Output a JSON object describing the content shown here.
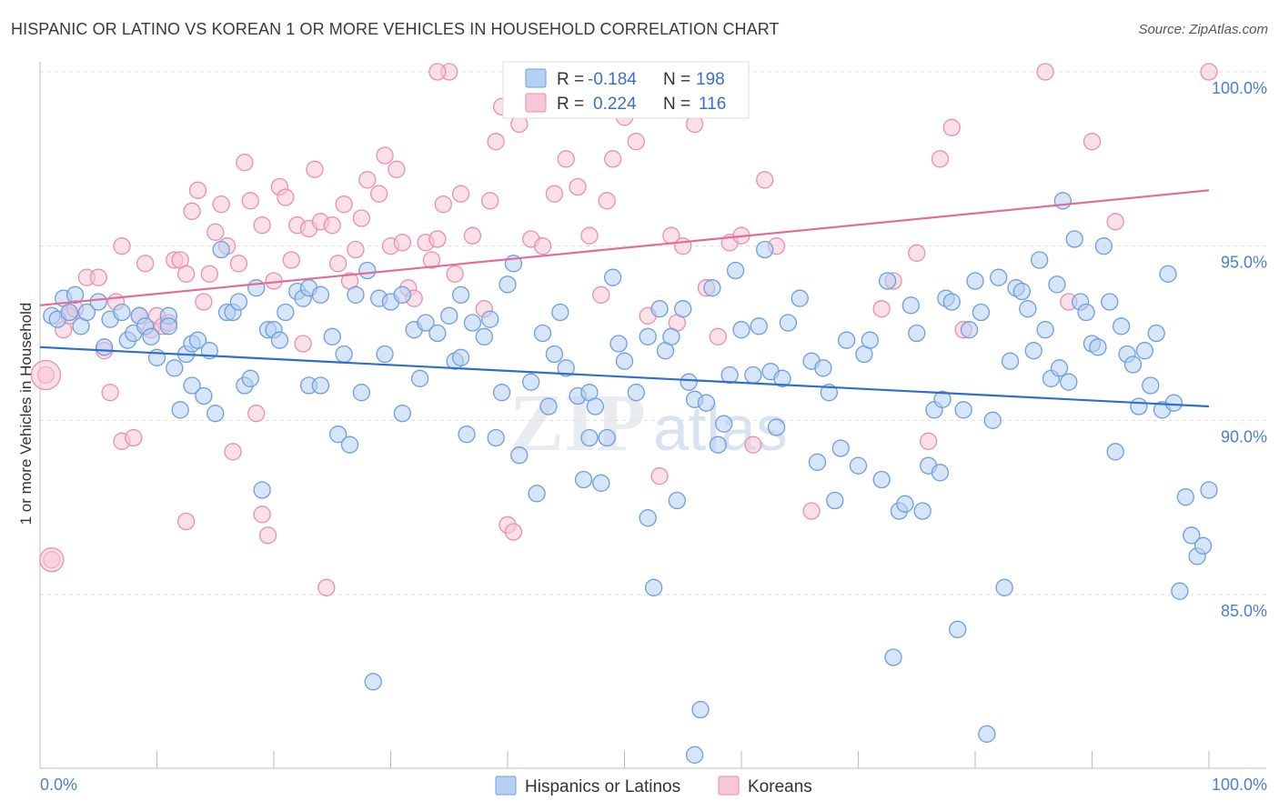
{
  "header": {
    "title": "HISPANIC OR LATINO VS KOREAN 1 OR MORE VEHICLES IN HOUSEHOLD CORRELATION CHART",
    "source": "Source: ZipAtlas.com"
  },
  "watermark": "ZIPatlas",
  "colors": {
    "blue_fill": "#b6d0f3",
    "blue_stroke": "#6d9ee0",
    "blue_line": "#2f6fcc",
    "pink_fill": "#f8c6d6",
    "pink_stroke": "#e98fae",
    "pink_line": "#e36c97",
    "axis_label": "#4a7fd0",
    "grid": "#dddddd"
  },
  "legend": {
    "rows": [
      {
        "r_label": "R =",
        "r_value": "-0.184",
        "n_label": "N =",
        "n_value": "198"
      },
      {
        "r_label": "R =",
        "r_value": "0.224",
        "n_label": "N =",
        "n_value": "116"
      }
    ]
  },
  "bottom_legend": [
    "Hispanics or Latinos",
    "Koreans"
  ],
  "chart_data": {
    "type": "scatter",
    "xlabel": "",
    "ylabel": "1 or more Vehicles in Household",
    "xlim": [
      0,
      100
    ],
    "ylim": [
      80.2,
      100.5
    ],
    "x_tick_labels": [
      "0.0%",
      "100.0%"
    ],
    "y_ticks": [
      85,
      90,
      95,
      100
    ],
    "y_tick_labels": [
      "85.0%",
      "90.0%",
      "95.0%",
      "100.0%"
    ],
    "grid": true,
    "series": [
      {
        "name": "Hispanics or Latinos",
        "color": "#b6d0f3",
        "trend": {
          "x": [
            0,
            100
          ],
          "y": [
            92.1,
            90.4
          ]
        },
        "points": [
          [
            1,
            93.0
          ],
          [
            1.5,
            92.9
          ],
          [
            2,
            93.5
          ],
          [
            2.5,
            93.1
          ],
          [
            3,
            93.6
          ],
          [
            3.5,
            92.7
          ],
          [
            4,
            93.1
          ],
          [
            5,
            93.4
          ],
          [
            5.5,
            92.1
          ],
          [
            6,
            92.9
          ],
          [
            7,
            93.1
          ],
          [
            7.5,
            92.3
          ],
          [
            8,
            92.5
          ],
          [
            8.5,
            93.0
          ],
          [
            9,
            92.7
          ],
          [
            9.5,
            92.4
          ],
          [
            10,
            91.8
          ],
          [
            11,
            93.0
          ],
          [
            11,
            92.7
          ],
          [
            11.5,
            91.5
          ],
          [
            12,
            90.3
          ],
          [
            12.5,
            91.9
          ],
          [
            13,
            92.2
          ],
          [
            13,
            91.0
          ],
          [
            13.5,
            92.3
          ],
          [
            14,
            90.7
          ],
          [
            14.5,
            92.0
          ],
          [
            15,
            90.2
          ],
          [
            16,
            93.1
          ],
          [
            16.5,
            93.1
          ],
          [
            17,
            93.4
          ],
          [
            17.5,
            91.0
          ],
          [
            18,
            91.2
          ],
          [
            18.5,
            93.8
          ],
          [
            19,
            88.0
          ],
          [
            19.5,
            92.6
          ],
          [
            20,
            92.6
          ],
          [
            20.5,
            92.3
          ],
          [
            21,
            93.1
          ],
          [
            22,
            93.7
          ],
          [
            22.5,
            93.5
          ],
          [
            23,
            93.8
          ],
          [
            23,
            91.0
          ],
          [
            24,
            93.6
          ],
          [
            24,
            91.0
          ],
          [
            25,
            92.4
          ],
          [
            25.5,
            89.6
          ],
          [
            26,
            91.9
          ],
          [
            26.5,
            89.3
          ],
          [
            27,
            93.6
          ],
          [
            27.5,
            90.8
          ],
          [
            28,
            94.3
          ],
          [
            28.5,
            82.5
          ],
          [
            29,
            93.5
          ],
          [
            29.5,
            91.9
          ],
          [
            30,
            93.4
          ],
          [
            31,
            90.2
          ],
          [
            31,
            93.6
          ],
          [
            32,
            92.6
          ],
          [
            32.5,
            91.2
          ],
          [
            33,
            92.8
          ],
          [
            34,
            92.5
          ],
          [
            35,
            93.0
          ],
          [
            35.5,
            91.7
          ],
          [
            36,
            93.6
          ],
          [
            36.5,
            89.6
          ],
          [
            37,
            92.8
          ],
          [
            38,
            92.4
          ],
          [
            38.5,
            92.9
          ],
          [
            39,
            89.5
          ],
          [
            39.5,
            90.8
          ],
          [
            40,
            93.9
          ],
          [
            40.5,
            94.5
          ],
          [
            41,
            89.0
          ],
          [
            42,
            91.1
          ],
          [
            42.5,
            87.9
          ],
          [
            43,
            92.5
          ],
          [
            43.5,
            90.4
          ],
          [
            44,
            91.9
          ],
          [
            44.5,
            93.1
          ],
          [
            45,
            91.5
          ],
          [
            46,
            90.7
          ],
          [
            46.5,
            88.3
          ],
          [
            47,
            90.8
          ],
          [
            47,
            89.5
          ],
          [
            48,
            88.2
          ],
          [
            48.5,
            89.5
          ],
          [
            49,
            94.1
          ],
          [
            49.5,
            92.2
          ],
          [
            50,
            91.7
          ],
          [
            51,
            90.8
          ],
          [
            52,
            92.4
          ],
          [
            52,
            87.2
          ],
          [
            52.5,
            85.2
          ],
          [
            53,
            93.2
          ],
          [
            53.5,
            92.0
          ],
          [
            54,
            92.4
          ],
          [
            54.5,
            87.7
          ],
          [
            55,
            93.2
          ],
          [
            55.5,
            91.1
          ],
          [
            56,
            90.6
          ],
          [
            56.5,
            81.7
          ],
          [
            57,
            90.5
          ],
          [
            58,
            89.3
          ],
          [
            58.5,
            89.9
          ],
          [
            59,
            91.3
          ],
          [
            59.5,
            94.3
          ],
          [
            60,
            92.6
          ],
          [
            61,
            91.3
          ],
          [
            61.5,
            92.7
          ],
          [
            62,
            94.9
          ],
          [
            62.5,
            91.4
          ],
          [
            63,
            89.8
          ],
          [
            63.5,
            91.2
          ],
          [
            64,
            92.8
          ],
          [
            65,
            93.5
          ],
          [
            66,
            91.7
          ],
          [
            66.5,
            88.8
          ],
          [
            67,
            91.5
          ],
          [
            68,
            87.7
          ],
          [
            68.5,
            89.2
          ],
          [
            69,
            92.3
          ],
          [
            70,
            88.7
          ],
          [
            70.5,
            91.9
          ],
          [
            71,
            92.3
          ],
          [
            72,
            88.3
          ],
          [
            72.5,
            94.0
          ],
          [
            73,
            83.2
          ],
          [
            73.5,
            87.4
          ],
          [
            74,
            87.6
          ],
          [
            74.5,
            93.3
          ],
          [
            75,
            92.5
          ],
          [
            75.5,
            87.4
          ],
          [
            76,
            88.7
          ],
          [
            76.5,
            90.3
          ],
          [
            77,
            88.5
          ],
          [
            77.5,
            93.5
          ],
          [
            78,
            93.4
          ],
          [
            78.5,
            84.0
          ],
          [
            79,
            90.3
          ],
          [
            79.5,
            92.6
          ],
          [
            80,
            94.0
          ],
          [
            80.5,
            93.1
          ],
          [
            81,
            81.0
          ],
          [
            81.5,
            90.0
          ],
          [
            82,
            94.1
          ],
          [
            82.5,
            85.2
          ],
          [
            83,
            91.7
          ],
          [
            83.5,
            93.8
          ],
          [
            84,
            93.7
          ],
          [
            84.5,
            93.2
          ],
          [
            85,
            92.0
          ],
          [
            85.5,
            94.6
          ],
          [
            86,
            92.6
          ],
          [
            86.5,
            91.2
          ],
          [
            87,
            93.9
          ],
          [
            87.5,
            96.3
          ],
          [
            88,
            91.1
          ],
          [
            88.5,
            95.2
          ],
          [
            89,
            93.4
          ],
          [
            89.5,
            93.1
          ],
          [
            90,
            92.2
          ],
          [
            90.5,
            92.1
          ],
          [
            91,
            95.0
          ],
          [
            91.5,
            93.4
          ],
          [
            92,
            89.1
          ],
          [
            92.5,
            92.7
          ],
          [
            93,
            91.9
          ],
          [
            93.5,
            91.6
          ],
          [
            94,
            90.4
          ],
          [
            94.5,
            92.0
          ],
          [
            95,
            91.0
          ],
          [
            95.5,
            92.5
          ],
          [
            96,
            90.3
          ],
          [
            96.5,
            94.2
          ],
          [
            97,
            90.5
          ],
          [
            97.5,
            85.1
          ],
          [
            98,
            87.8
          ],
          [
            98.5,
            86.7
          ],
          [
            99,
            86.1
          ],
          [
            99.5,
            86.4
          ],
          [
            100,
            88.0
          ],
          [
            36,
            91.8
          ],
          [
            47.5,
            90.4
          ],
          [
            57.5,
            93.8
          ],
          [
            67.5,
            90.8
          ],
          [
            77.2,
            90.6
          ],
          [
            87.2,
            91.5
          ],
          [
            15.5,
            94.9
          ],
          [
            56,
            80.4
          ]
        ]
      },
      {
        "name": "Koreans",
        "color": "#f8c6d6",
        "trend": {
          "x": [
            0,
            100
          ],
          "y": [
            93.3,
            96.6
          ]
        },
        "points": [
          [
            0.5,
            91.3
          ],
          [
            1,
            86.0
          ],
          [
            2,
            92.6
          ],
          [
            2.5,
            93.0
          ],
          [
            3,
            93.2
          ],
          [
            4,
            94.1
          ],
          [
            5,
            94.1
          ],
          [
            5.5,
            92.0
          ],
          [
            6,
            90.8
          ],
          [
            6.5,
            93.4
          ],
          [
            7,
            89.4
          ],
          [
            7,
            95.0
          ],
          [
            8,
            89.5
          ],
          [
            8.5,
            93.0
          ],
          [
            9,
            94.5
          ],
          [
            9.5,
            92.6
          ],
          [
            10,
            93.0
          ],
          [
            10.5,
            92.7
          ],
          [
            11,
            92.8
          ],
          [
            11.5,
            94.6
          ],
          [
            12,
            94.6
          ],
          [
            12.5,
            94.2
          ],
          [
            13,
            96.0
          ],
          [
            13.5,
            96.6
          ],
          [
            14,
            93.4
          ],
          [
            14.5,
            94.2
          ],
          [
            15,
            95.4
          ],
          [
            15.5,
            96.2
          ],
          [
            16,
            95.0
          ],
          [
            16.5,
            89.1
          ],
          [
            17,
            94.5
          ],
          [
            17.5,
            97.4
          ],
          [
            18,
            96.3
          ],
          [
            18.5,
            90.2
          ],
          [
            19,
            95.6
          ],
          [
            19.5,
            86.7
          ],
          [
            20,
            94.0
          ],
          [
            20.5,
            96.7
          ],
          [
            21,
            96.4
          ],
          [
            21.5,
            94.6
          ],
          [
            22,
            95.6
          ],
          [
            22.5,
            92.2
          ],
          [
            23,
            95.5
          ],
          [
            23.5,
            97.2
          ],
          [
            24,
            95.7
          ],
          [
            24.5,
            85.2
          ],
          [
            25,
            95.6
          ],
          [
            25.5,
            94.5
          ],
          [
            26,
            96.2
          ],
          [
            26.5,
            94.0
          ],
          [
            27,
            94.9
          ],
          [
            27.5,
            95.8
          ],
          [
            28,
            96.9
          ],
          [
            29,
            96.5
          ],
          [
            29.5,
            97.6
          ],
          [
            30,
            95.0
          ],
          [
            30.5,
            97.2
          ],
          [
            31,
            95.1
          ],
          [
            31.5,
            93.8
          ],
          [
            32,
            93.5
          ],
          [
            33,
            95.1
          ],
          [
            33.5,
            94.6
          ],
          [
            34,
            95.2
          ],
          [
            34.5,
            96.2
          ],
          [
            35,
            100.0
          ],
          [
            35.5,
            94.2
          ],
          [
            36,
            96.5
          ],
          [
            37,
            95.3
          ],
          [
            38,
            93.2
          ],
          [
            38.5,
            96.3
          ],
          [
            39,
            98.0
          ],
          [
            39.5,
            99.0
          ],
          [
            40,
            87.0
          ],
          [
            40.5,
            86.8
          ],
          [
            41,
            98.5
          ],
          [
            42,
            95.2
          ],
          [
            43,
            95.0
          ],
          [
            44,
            96.5
          ],
          [
            45,
            97.5
          ],
          [
            46,
            96.7
          ],
          [
            47,
            95.3
          ],
          [
            48,
            93.6
          ],
          [
            48.5,
            96.3
          ],
          [
            49,
            97.5
          ],
          [
            50,
            98.7
          ],
          [
            51,
            98.0
          ],
          [
            52,
            93.0
          ],
          [
            53,
            88.4
          ],
          [
            54,
            95.3
          ],
          [
            54.5,
            92.8
          ],
          [
            55,
            95.0
          ],
          [
            56,
            98.5
          ],
          [
            57,
            93.8
          ],
          [
            58,
            92.4
          ],
          [
            59,
            95.1
          ],
          [
            60,
            95.3
          ],
          [
            61,
            89.3
          ],
          [
            62,
            96.9
          ],
          [
            63,
            95.0
          ],
          [
            66,
            87.4
          ],
          [
            72,
            93.2
          ],
          [
            73,
            94.0
          ],
          [
            75,
            94.8
          ],
          [
            76,
            89.4
          ],
          [
            77,
            97.5
          ],
          [
            78,
            98.4
          ],
          [
            79,
            92.6
          ],
          [
            86,
            100.0
          ],
          [
            88,
            93.4
          ],
          [
            90,
            98.0
          ],
          [
            92,
            95.7
          ],
          [
            100,
            100.0
          ],
          [
            34,
            100.0
          ],
          [
            12.5,
            87.1
          ],
          [
            19,
            87.3
          ]
        ]
      }
    ]
  }
}
